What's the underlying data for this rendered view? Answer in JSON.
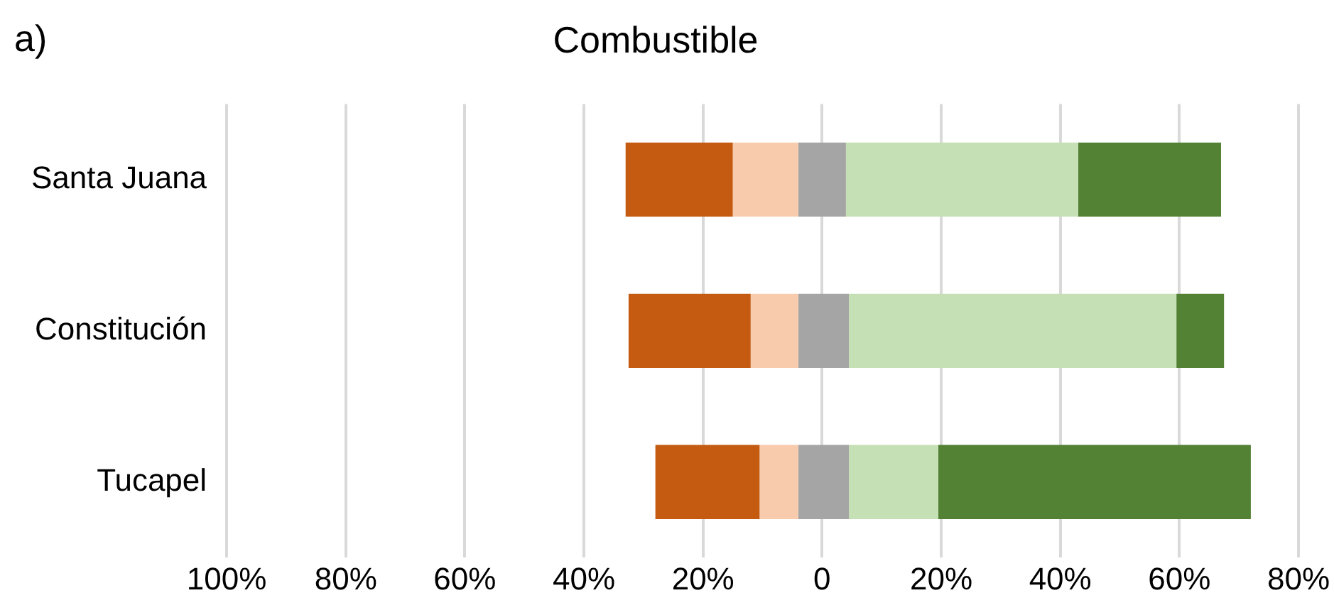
{
  "chart_data": {
    "type": "bar",
    "orientation": "horizontal",
    "title": "Combustible",
    "annotations": [
      "a)"
    ],
    "categories": [
      "Santa Juana",
      "Constitución",
      "Tucapel"
    ],
    "series": [
      {
        "color": "#c55a11",
        "base": [
          -33,
          -32.5,
          -28
        ],
        "values": [
          18,
          20.5,
          17.5
        ]
      },
      {
        "color": "#f8cbad",
        "base": [
          -15,
          -12,
          -10.5
        ],
        "values": [
          11,
          8,
          6.5
        ]
      },
      {
        "color": "#a5a5a5",
        "base": [
          -4,
          -4,
          -4
        ],
        "values": [
          8,
          8.5,
          8.5
        ]
      },
      {
        "color": "#c5e0b4",
        "base": [
          4,
          4.5,
          4.5
        ],
        "values": [
          39,
          55,
          15
        ]
      },
      {
        "color": "#548235",
        "base": [
          43,
          59.5,
          19.5
        ],
        "values": [
          24,
          8,
          52.5
        ]
      }
    ],
    "xlim": [
      -100,
      80
    ],
    "xticks": [
      {
        "value": -100,
        "label": "100%"
      },
      {
        "value": -80,
        "label": "80%"
      },
      {
        "value": -60,
        "label": "60%"
      },
      {
        "value": -40,
        "label": "40%"
      },
      {
        "value": -20,
        "label": "20%"
      },
      0,
      {
        "value": 20,
        "label": "20%"
      },
      {
        "value": 40,
        "label": "40%"
      },
      {
        "value": 60,
        "label": "60%"
      },
      {
        "value": 80,
        "label": "80%"
      }
    ],
    "grid": "x",
    "legend": false
  }
}
